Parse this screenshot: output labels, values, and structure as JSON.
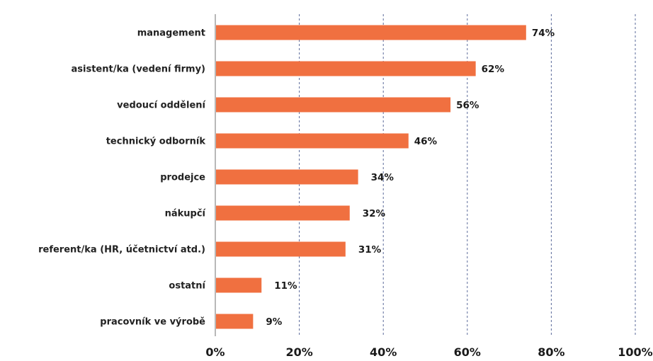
{
  "chart_data": {
    "type": "bar",
    "orientation": "horizontal",
    "categories": [
      "management",
      "asistent/ka (vedení firmy)",
      "vedoucí oddělení",
      "technický odborník",
      "prodejce",
      "nákupčí",
      "referent/ka (HR, účetnictví atd.)",
      "ostatní",
      "pracovník ve výrobě"
    ],
    "values": [
      74,
      62,
      56,
      46,
      34,
      32,
      31,
      11,
      9
    ],
    "value_labels": [
      "74%",
      "62%",
      "56%",
      "46%",
      "34%",
      "32%",
      "31%",
      "11%",
      "9%"
    ],
    "xlim": [
      0,
      100
    ],
    "x_ticks": [
      0,
      20,
      40,
      60,
      80,
      100
    ],
    "x_tick_labels": [
      "0%",
      "20%",
      "40%",
      "60%",
      "80%",
      "100%"
    ],
    "grid": "vertical dashed",
    "bar_color": "#F07040",
    "grid_color": "#5A6A9A"
  }
}
